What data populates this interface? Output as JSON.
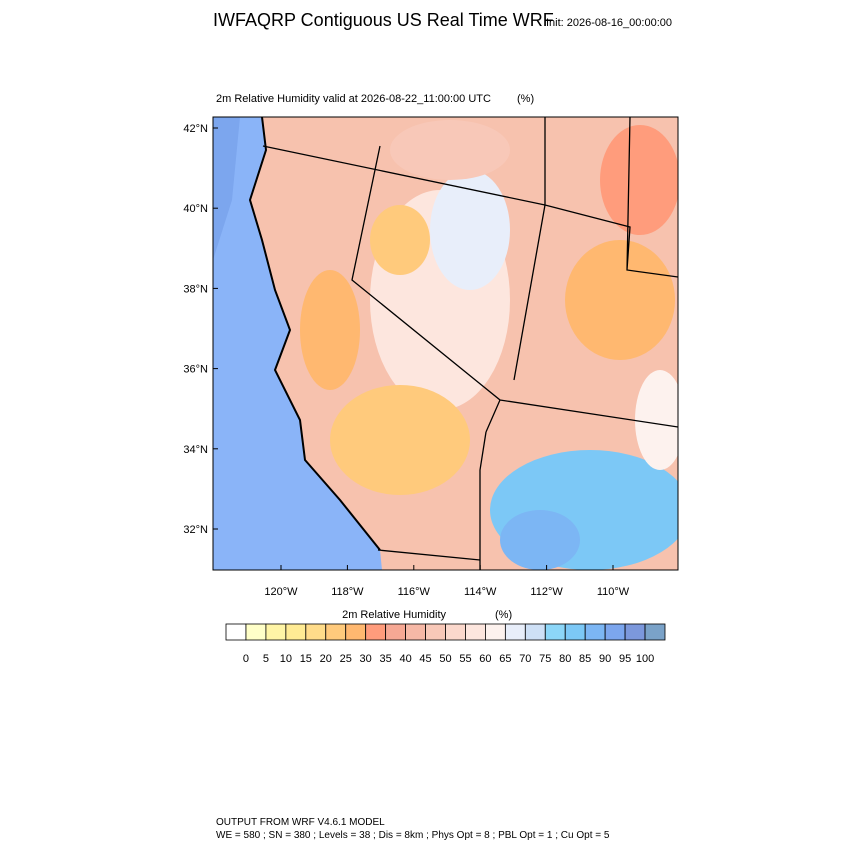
{
  "header": {
    "title": "IWFAQRP Contiguous US Real Time WRF",
    "init": "Init: 2026-08-16_00:00:00"
  },
  "map": {
    "subtitle": "2m Relative Humidity valid at 2026-08-22_11:00:00 UTC",
    "units": "(%)",
    "lat_labels": [
      "42°N",
      "40°N",
      "38°N",
      "36°N",
      "34°N",
      "32°N"
    ],
    "lon_labels": [
      "120°W",
      "118°W",
      "116°W",
      "114°W",
      "112°W",
      "110°W"
    ]
  },
  "colorbar": {
    "title": "2m Relative Humidity",
    "units": "(%)",
    "levels": [
      0,
      5,
      10,
      15,
      20,
      25,
      30,
      35,
      40,
      45,
      50,
      55,
      60,
      65,
      70,
      75,
      80,
      85,
      90,
      95,
      100
    ],
    "colors": [
      "#ffffff",
      "#ffffc8",
      "#fff5a6",
      "#ffeb94",
      "#ffdc8a",
      "#ffca7c",
      "#ffb870",
      "#ff9c7c",
      "#f6a894",
      "#f6b8a6",
      "#f8c8b8",
      "#fbd8cc",
      "#fde6de",
      "#fdf2ee",
      "#e8eefa",
      "#cee0f6",
      "#8cd6f8",
      "#7cc8f6",
      "#7cb6f4",
      "#7ca6ee",
      "#7c98dc",
      "#7aa2c8"
    ]
  },
  "footer": {
    "line1": "OUTPUT FROM WRF V4.6.1 MODEL",
    "line2": "WE = 580 ; SN = 380 ; Levels = 38 ; Dis = 8km ; Phys Opt = 8 ; PBL Opt = 1 ; Cu Opt = 5"
  }
}
